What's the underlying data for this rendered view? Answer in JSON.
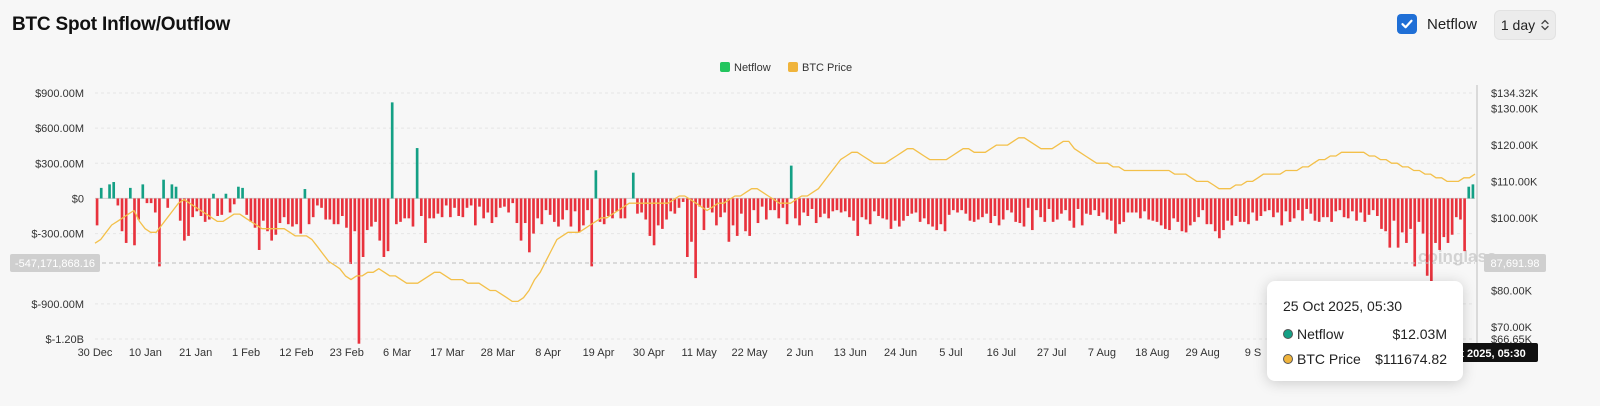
{
  "header": {
    "title": "BTC Spot Inflow/Outflow",
    "toggle_label": "Netflow",
    "toggle_checked": true,
    "range_value": "1 day"
  },
  "legend": [
    {
      "name": "Netflow",
      "color": "#22c55e"
    },
    {
      "name": "BTC Price",
      "color": "#f0b43c"
    }
  ],
  "colors": {
    "positive": "#14a085",
    "negative": "#e8323d",
    "price": "#f3c04a"
  },
  "watermark": "coinglass",
  "crosshair": {
    "y_label": "-547,171,868.16",
    "price_label": "87,691.98",
    "x_label": "25 Oct 2025, 05:30"
  },
  "tooltip": {
    "date": "25 Oct 2025, 05:30",
    "rows": [
      {
        "name": "Netflow",
        "value": "$12.03M",
        "color": "#14a085"
      },
      {
        "name": "BTC Price",
        "value": "$111674.82",
        "color": "#f0b43c"
      }
    ]
  },
  "chart_data": {
    "type": "bar",
    "title": "BTC Spot Inflow/Outflow",
    "x_tick_labels": [
      "30 Dec",
      "10 Jan",
      "21 Jan",
      "1 Feb",
      "12 Feb",
      "23 Feb",
      "6 Mar",
      "17 Mar",
      "28 Mar",
      "8 Apr",
      "19 Apr",
      "30 Apr",
      "11 May",
      "22 May",
      "2 Jun",
      "13 Jun",
      "24 Jun",
      "5 Jul",
      "16 Jul",
      "27 Jul",
      "7 Aug",
      "18 Aug",
      "29 Aug",
      "9 S"
    ],
    "y_left": {
      "ticks": [
        "$900.00M",
        "$600.00M",
        "$300.00M",
        "$0",
        "$-300.00M",
        "$-900.00M",
        "$-1.20B"
      ],
      "range": [
        -1200,
        900
      ],
      "unit": "M USD"
    },
    "y_right": {
      "ticks": [
        "$134.32K",
        "$130.00K",
        "$120.00K",
        "$110.00K",
        "$100.00K",
        "$80.00K",
        "$70.00K",
        "$66.65K"
      ],
      "range": [
        66.65,
        134.32
      ],
      "unit": "K USD"
    },
    "legend_position": "top-center",
    "series": [
      {
        "name": "Netflow",
        "type": "bar",
        "unit": "M USD",
        "values": [
          -230,
          90,
          0,
          120,
          140,
          -60,
          -280,
          -380,
          90,
          -400,
          -180,
          120,
          -40,
          -40,
          -120,
          -580,
          160,
          -80,
          120,
          100,
          -190,
          -360,
          -320,
          -160,
          -110,
          -150,
          -200,
          -180,
          40,
          -150,
          -140,
          40,
          -120,
          -50,
          100,
          90,
          -140,
          -200,
          -250,
          -440,
          -190,
          -280,
          -360,
          -310,
          -210,
          -160,
          -220,
          -240,
          -220,
          -300,
          80,
          -220,
          -160,
          -60,
          -80,
          -180,
          -180,
          -220,
          -220,
          -150,
          -250,
          -560,
          -280,
          -1240,
          -500,
          -270,
          -240,
          -200,
          -360,
          -500,
          -450,
          820,
          -220,
          -200,
          -170,
          -170,
          -240,
          430,
          -150,
          -380,
          -170,
          -170,
          -130,
          -160,
          -60,
          -160,
          -80,
          -150,
          -160,
          -80,
          -60,
          -230,
          -70,
          -170,
          -120,
          -210,
          -160,
          -80,
          -70,
          -120,
          -40,
          -210,
          -360,
          -210,
          -460,
          -300,
          -170,
          -220,
          -100,
          -140,
          -200,
          -240,
          -180,
          -100,
          -240,
          -110,
          -290,
          -230,
          -100,
          -580,
          240,
          -200,
          -220,
          -150,
          -170,
          -110,
          -170,
          -170,
          0,
          220,
          -130,
          -120,
          -180,
          -320,
          -400,
          -230,
          -260,
          -180,
          -110,
          -130,
          -80,
          -30,
          -500,
          -370,
          -680,
          -70,
          -270,
          -80,
          -120,
          -230,
          -160,
          -120,
          -370,
          -230,
          -320,
          -130,
          -280,
          -320,
          -100,
          -210,
          -70,
          -180,
          -100,
          -100,
          -170,
          -80,
          -220,
          280,
          -170,
          -230,
          -120,
          -150,
          -90,
          -210,
          -160,
          -130,
          -170,
          -110,
          -100,
          -120,
          -110,
          -160,
          -190,
          -320,
          -160,
          -180,
          -220,
          -110,
          -150,
          -170,
          -180,
          -260,
          -190,
          -240,
          -190,
          -150,
          -130,
          -120,
          -200,
          -170,
          -220,
          -240,
          -270,
          -220,
          -280,
          -140,
          -100,
          -120,
          -100,
          -130,
          -190,
          -200,
          -180,
          -160,
          -130,
          -210,
          -150,
          -230,
          -180,
          -100,
          -120,
          -200,
          -210,
          -240,
          -80,
          -270,
          -100,
          -160,
          -200,
          -90,
          -200,
          -180,
          -130,
          -100,
          -190,
          -250,
          -90,
          -230,
          -130,
          -140,
          -100,
          -150,
          -120,
          -180,
          -190,
          -300,
          -220,
          -200,
          -120,
          -120,
          -120,
          -170,
          -110,
          -180,
          -190,
          -200,
          -230,
          -260,
          -270,
          -170,
          -200,
          -280,
          -290,
          -230,
          -200,
          -160,
          -100,
          -220,
          -220,
          -280,
          -340,
          -270,
          -190,
          -230,
          -150,
          -200,
          -200,
          -220,
          -120,
          -190,
          -150,
          -110,
          -100,
          -160,
          -120,
          -230,
          -110,
          -200,
          -170,
          -100,
          -190,
          -90,
          -130,
          -190,
          -200,
          -160,
          -160,
          -200,
          -110,
          -100,
          -160,
          -170,
          -110,
          -190,
          -120,
          -200,
          -140,
          -100,
          -150,
          -260,
          -280,
          -420,
          -190,
          -420,
          -290,
          -380,
          -260,
          -580,
          -200,
          -300,
          -660,
          -760,
          -380,
          -440,
          -330,
          -380,
          -310,
          -160,
          -180,
          -450,
          100,
          120
        ],
        "highlights": [
          {
            "index": 62,
            "value": -1240
          },
          {
            "index": 72,
            "value": 820
          }
        ]
      },
      {
        "name": "BTC Price",
        "type": "line",
        "unit": "K USD",
        "values": [
          93,
          94,
          96,
          98,
          99,
          100,
          101,
          102,
          99,
          97,
          96,
          96,
          98,
          100,
          102,
          104,
          105,
          104,
          103,
          102,
          101,
          100,
          99,
          99,
          100,
          101,
          101,
          100,
          99,
          98,
          97,
          97,
          97,
          97,
          97,
          96,
          95,
          95,
          95,
          94,
          92,
          90,
          88,
          87,
          86,
          84,
          83,
          84,
          84,
          85,
          85,
          86,
          85,
          84,
          84,
          83,
          82,
          82,
          82,
          83,
          84,
          85,
          85,
          84,
          83,
          83,
          83,
          82,
          82,
          82,
          81,
          80,
          80,
          79,
          78,
          77,
          77,
          78,
          80,
          83,
          85,
          88,
          91,
          94,
          95,
          96,
          96,
          96,
          97,
          98,
          99,
          100,
          100,
          101,
          102,
          103,
          104,
          104,
          104,
          104,
          104,
          104,
          104,
          104,
          105,
          106,
          106,
          105,
          104,
          103,
          102,
          103,
          104,
          104,
          105,
          106,
          106,
          107,
          108,
          108,
          107,
          106,
          105,
          104,
          104,
          104,
          105,
          106,
          106,
          107,
          108,
          110,
          112,
          114,
          116,
          117,
          118,
          118,
          117,
          116,
          115,
          115,
          115,
          116,
          117,
          118,
          119,
          119,
          118,
          117,
          116,
          116,
          116,
          116,
          117,
          118,
          119,
          119,
          118,
          118,
          118,
          119,
          120,
          120,
          120,
          121,
          122,
          122,
          121,
          120,
          119,
          119,
          119,
          120,
          121,
          121,
          119,
          118,
          117,
          116,
          115,
          115,
          115,
          114,
          114,
          113,
          113,
          113,
          113,
          113,
          113,
          113,
          113,
          113,
          112,
          112,
          112,
          111,
          110,
          110,
          110,
          109,
          108,
          108,
          108,
          109,
          109,
          110,
          110,
          111,
          112,
          112,
          112,
          112,
          113,
          113,
          113,
          114,
          114,
          115,
          116,
          116,
          117,
          117,
          118,
          118,
          118,
          118,
          118,
          117,
          117,
          116,
          116,
          115,
          115,
          114,
          114,
          113,
          113,
          112,
          112,
          111,
          111,
          110,
          110,
          110,
          111,
          111,
          112
        ]
      }
    ]
  }
}
